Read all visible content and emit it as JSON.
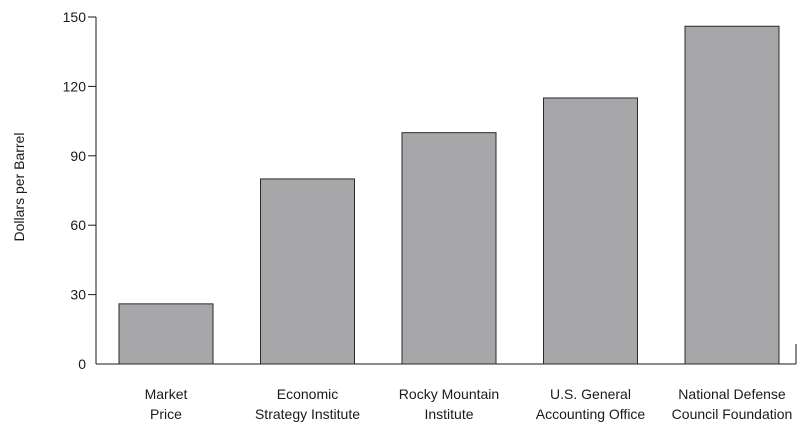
{
  "chart_data": {
    "type": "bar",
    "title": "",
    "xlabel": "",
    "ylabel": "Dollars per Barrel",
    "ylim": [
      0,
      150
    ],
    "yticks": [
      0,
      30,
      60,
      90,
      120,
      150
    ],
    "grid": false,
    "legend": "none",
    "categories": [
      [
        "Market",
        "Price"
      ],
      [
        "Economic",
        "Strategy Institute"
      ],
      [
        "Rocky Mountain",
        "Institute"
      ],
      [
        "U.S. General",
        "Accounting Office"
      ],
      [
        "National Defense",
        "Council Foundation"
      ]
    ],
    "values": [
      26,
      80,
      100,
      115,
      146
    ],
    "colors": {
      "bar_fill": "#a7a7a9",
      "bar_stroke": "#2a2a2a",
      "axis": "#1a1a1a"
    }
  }
}
